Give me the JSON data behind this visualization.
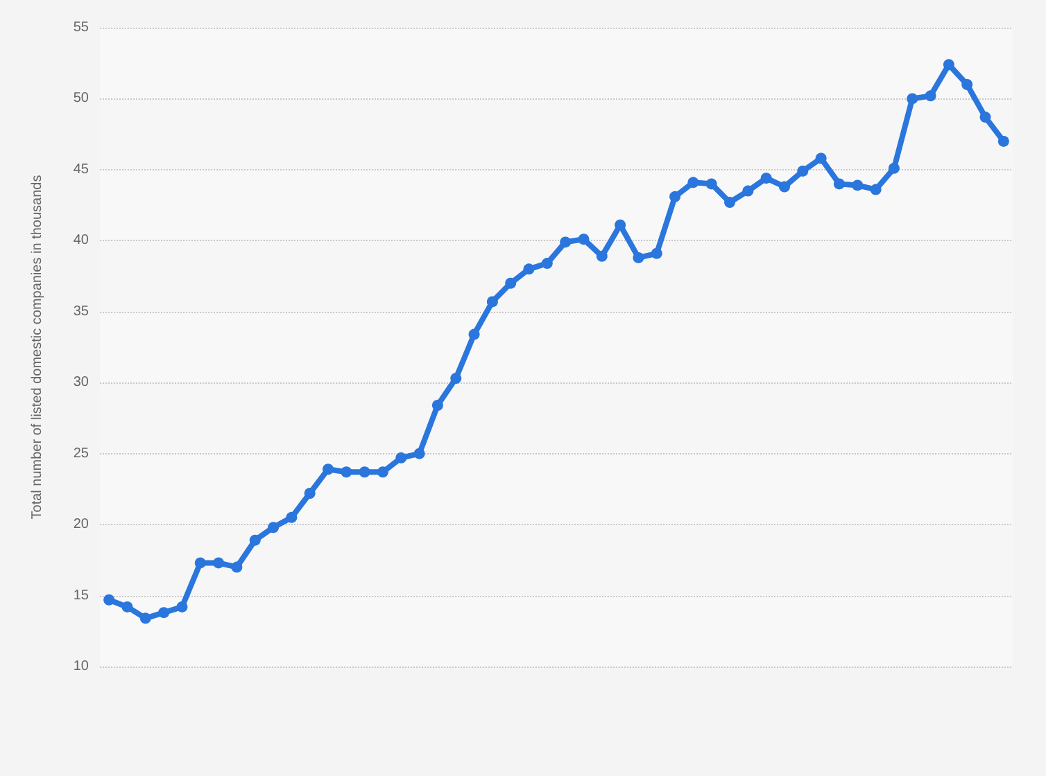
{
  "chart_data": {
    "type": "line",
    "ylabel": "Total number of listed domestic companies in thousands",
    "categories": [
      null,
      null,
      null,
      null,
      null,
      null,
      null,
      null,
      null,
      null,
      null,
      null,
      null,
      null,
      null,
      null,
      null,
      null,
      null,
      null,
      null,
      null,
      null,
      null,
      null,
      null,
      null,
      null,
      null,
      null,
      null,
      null,
      null,
      null,
      null,
      null,
      null,
      null,
      null,
      null,
      null,
      null,
      null,
      null,
      null,
      null,
      null,
      null,
      null,
      null
    ],
    "series": [
      {
        "color": "#2a76dd",
        "values": [
          14.7,
          14.2,
          13.4,
          13.8,
          14.2,
          17.3,
          17.3,
          17.0,
          18.9,
          19.8,
          20.5,
          22.2,
          23.9,
          23.7,
          23.7,
          23.7,
          24.7,
          25.0,
          28.4,
          30.3,
          33.4,
          35.7,
          37.0,
          38.0,
          38.4,
          39.9,
          40.1,
          38.9,
          41.1,
          38.8,
          39.1,
          43.1,
          44.1,
          44.0,
          42.7,
          43.5,
          44.4,
          43.8,
          44.9,
          45.8,
          44.0,
          43.9,
          43.6,
          45.1,
          50.0,
          50.2,
          52.4,
          51.0,
          48.7,
          47.0
        ]
      }
    ],
    "ylim": [
      10,
      55
    ],
    "yticks": [
      10,
      15,
      20,
      25,
      30,
      35,
      40,
      45,
      50,
      55
    ],
    "grid": "y",
    "marker": "circle",
    "line_style": "solid",
    "tick_labels": "y"
  }
}
